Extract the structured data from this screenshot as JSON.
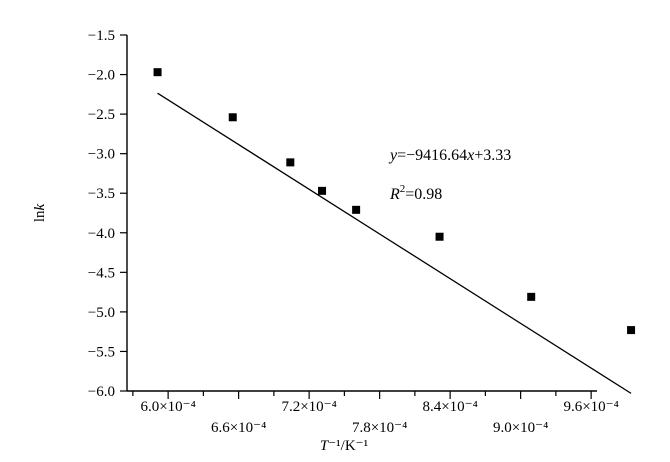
{
  "chart_data": {
    "type": "scatter",
    "title": "",
    "xlabel": "T⁻¹/K⁻¹",
    "ylabel": "lnk",
    "xlim": [
      0.000565,
      0.000965
    ],
    "ylim": [
      -6.0,
      -1.5
    ],
    "x_ticks": [
      0.0006,
      0.00066,
      0.00072,
      0.00078,
      0.00084,
      0.0009,
      0.00096
    ],
    "x_tick_labels": [
      "6.0×10⁻⁴",
      "6.6×10⁻⁴",
      "7.2×10⁻⁴",
      "7.8×10⁻⁴",
      "8.4×10⁻⁴",
      "9.0×10⁻⁴",
      "9.6×10⁻⁴"
    ],
    "y_ticks": [
      -6.0,
      -5.5,
      -5.0,
      -4.5,
      -4.0,
      -3.5,
      -3.0,
      -2.5,
      -2.0,
      -1.5
    ],
    "y_tick_labels": [
      "−6.0",
      "−5.5",
      "−5.0",
      "−4.5",
      "−4.0",
      "−3.5",
      "−3.0",
      "−2.5",
      "−2.0",
      "−1.5"
    ],
    "grid": false,
    "legend": "none",
    "series": [
      {
        "marker": "square",
        "x": [
          0.000591,
          0.000655,
          0.000704,
          0.000731,
          0.00076,
          0.000831,
          0.000909,
          0.000994
        ],
        "y": [
          -1.97,
          -2.54,
          -3.11,
          -3.47,
          -3.71,
          -4.05,
          -4.81,
          -5.23
        ]
      }
    ],
    "fit_line": {
      "slope": -9416.64,
      "intercept": 3.33,
      "x_range": [
        0.000591,
        0.000994
      ]
    },
    "annotations": {
      "equation": {
        "y": "y",
        "mid": "=−9416.64",
        "x": "x",
        "end": "+3.33"
      },
      "r2": {
        "R": "R",
        "sup": "2",
        "end": "=0.98"
      }
    }
  }
}
